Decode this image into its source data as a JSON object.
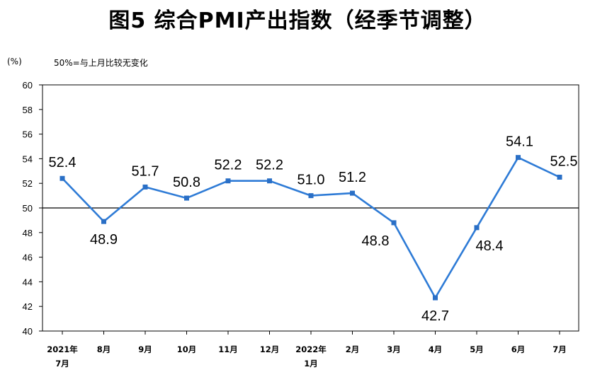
{
  "chart_data": {
    "type": "line",
    "title": "图5 综合PMI产出指数（经季节调整）",
    "ylabel": "(%)",
    "annotation": "50%=与上月比较无变化",
    "categories": [
      "2021年\n7月",
      "8月",
      "9月",
      "10月",
      "11月",
      "12月",
      "2022年\n1月",
      "2月",
      "3月",
      "4月",
      "5月",
      "6月",
      "7月"
    ],
    "series": [
      {
        "values": [
          52.4,
          48.9,
          51.7,
          50.8,
          52.2,
          52.2,
          51.0,
          51.2,
          48.8,
          42.7,
          48.4,
          54.1,
          52.5
        ]
      }
    ],
    "ylim": [
      40,
      60
    ],
    "ytick_step": 2,
    "reference_line": 50,
    "grid": false,
    "legend": "none",
    "data_labels": true,
    "colors": {
      "line": "#2e7bd6",
      "marker": "#2a6fc6",
      "reference_line": "#000000",
      "axis": "#000000"
    }
  }
}
